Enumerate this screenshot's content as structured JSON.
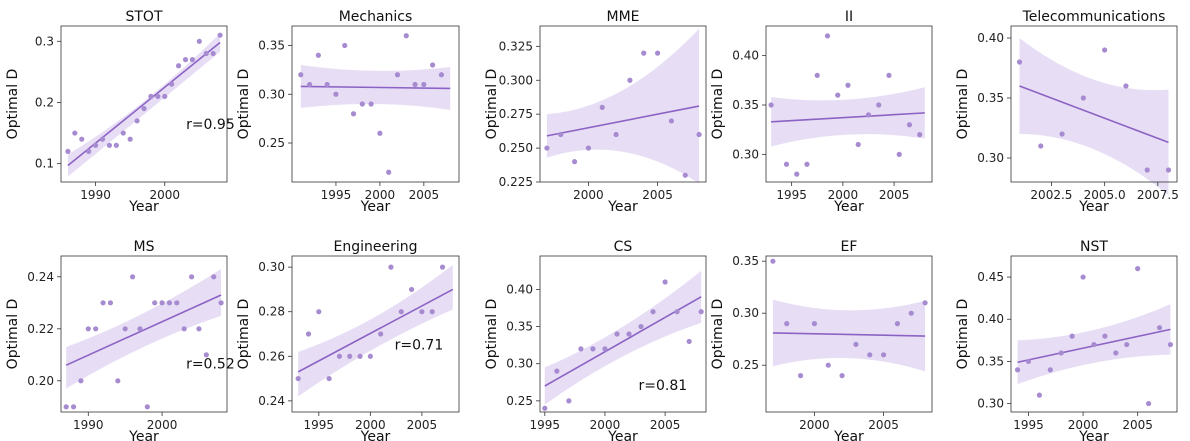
{
  "chart_data": [
    {
      "type": "scatter",
      "title": "STOT",
      "xlabel": "Year",
      "ylabel": "Optimal D",
      "xlim": [
        1985,
        2009
      ],
      "ylim": [
        0.07,
        0.325
      ],
      "xticks": [
        1990,
        2000
      ],
      "yticks": [
        0.1,
        0.2,
        0.3
      ],
      "yticklabels": [
        "0.1",
        "0.2",
        "0.3"
      ],
      "annotation": "r=0.95",
      "points": [
        [
          1986,
          0.12
        ],
        [
          1987,
          0.15
        ],
        [
          1988,
          0.14
        ],
        [
          1989,
          0.12
        ],
        [
          1990,
          0.13
        ],
        [
          1991,
          0.14
        ],
        [
          1992,
          0.13
        ],
        [
          1993,
          0.13
        ],
        [
          1994,
          0.15
        ],
        [
          1995,
          0.14
        ],
        [
          1996,
          0.17
        ],
        [
          1997,
          0.19
        ],
        [
          1998,
          0.21
        ],
        [
          1999,
          0.21
        ],
        [
          2000,
          0.21
        ],
        [
          2001,
          0.23
        ],
        [
          2002,
          0.26
        ],
        [
          2003,
          0.27
        ],
        [
          2004,
          0.27
        ],
        [
          2005,
          0.3
        ],
        [
          2006,
          0.28
        ],
        [
          2007,
          0.28
        ],
        [
          2008,
          0.31
        ]
      ],
      "fit": {
        "start": [
          1986,
          0.097
        ],
        "end": [
          2008,
          0.298
        ]
      },
      "band": {
        "upper": [
          [
            1986,
            0.115
          ],
          [
            1997,
            0.19
          ],
          [
            2008,
            0.313
          ]
        ],
        "lower": [
          [
            1986,
            0.079
          ],
          [
            1997,
            0.18
          ],
          [
            2008,
            0.283
          ]
        ]
      }
    },
    {
      "type": "scatter",
      "title": "Mechanics",
      "xlabel": "Year",
      "ylabel": "Optimal D",
      "xlim": [
        1990,
        2009
      ],
      "ylim": [
        0.21,
        0.37
      ],
      "xticks": [
        1995,
        2000,
        2005
      ],
      "yticks": [
        0.25,
        0.3,
        0.35
      ],
      "yticklabels": [
        "0.25",
        "0.30",
        "0.35"
      ],
      "annotation": "",
      "points": [
        [
          1991,
          0.32
        ],
        [
          1992,
          0.31
        ],
        [
          1993,
          0.34
        ],
        [
          1994,
          0.31
        ],
        [
          1995,
          0.3
        ],
        [
          1996,
          0.35
        ],
        [
          1997,
          0.28
        ],
        [
          1998,
          0.29
        ],
        [
          1999,
          0.29
        ],
        [
          2000,
          0.26
        ],
        [
          2001,
          0.22
        ],
        [
          2002,
          0.32
        ],
        [
          2003,
          0.36
        ],
        [
          2004,
          0.31
        ],
        [
          2005,
          0.31
        ],
        [
          2006,
          0.33
        ],
        [
          2007,
          0.32
        ]
      ],
      "fit": {
        "start": [
          1991,
          0.308
        ],
        "end": [
          2008,
          0.306
        ]
      },
      "band": {
        "upper": [
          [
            1991,
            0.33
          ],
          [
            1999.5,
            0.319
          ],
          [
            2008,
            0.328
          ]
        ],
        "lower": [
          [
            1991,
            0.286
          ],
          [
            1999.5,
            0.295
          ],
          [
            2008,
            0.284
          ]
        ]
      }
    },
    {
      "type": "scatter",
      "title": "MME",
      "xlabel": "Year",
      "ylabel": "Optimal D",
      "xlim": [
        1996.5,
        2008.5
      ],
      "ylim": [
        0.225,
        0.34
      ],
      "xticks": [
        2000,
        2005
      ],
      "yticks": [
        0.225,
        0.25,
        0.275,
        0.3,
        0.325
      ],
      "yticklabels": [
        "0.225",
        "0.250",
        "0.275",
        "0.300",
        "0.325"
      ],
      "annotation": "",
      "points": [
        [
          1997,
          0.25
        ],
        [
          1998,
          0.26
        ],
        [
          1999,
          0.24
        ],
        [
          2000,
          0.25
        ],
        [
          2001,
          0.28
        ],
        [
          2002,
          0.26
        ],
        [
          2003,
          0.3
        ],
        [
          2004,
          0.32
        ],
        [
          2005,
          0.32
        ],
        [
          2006,
          0.27
        ],
        [
          2007,
          0.23
        ],
        [
          2008,
          0.26
        ]
      ],
      "fit": {
        "start": [
          1997,
          0.259
        ],
        "end": [
          2008,
          0.281
        ]
      },
      "band": {
        "upper": [
          [
            1997,
            0.275
          ],
          [
            2002.5,
            0.279
          ],
          [
            2008,
            0.338
          ]
        ],
        "lower": [
          [
            1997,
            0.243
          ],
          [
            2002.5,
            0.261
          ],
          [
            2008,
            0.224
          ]
        ]
      }
    },
    {
      "type": "scatter",
      "title": "II",
      "xlabel": "Year",
      "ylabel": "Optimal D",
      "xlim": [
        1992.5,
        2008.7
      ],
      "ylim": [
        0.272,
        0.43
      ],
      "xticks": [
        1995,
        2000,
        2005
      ],
      "yticks": [
        0.3,
        0.35,
        0.4
      ],
      "yticklabels": [
        "0.30",
        "0.35",
        "0.40"
      ],
      "annotation": "",
      "points": [
        [
          1993,
          0.35
        ],
        [
          1994.5,
          0.29
        ],
        [
          1995.5,
          0.28
        ],
        [
          1996.5,
          0.29
        ],
        [
          1997.5,
          0.38
        ],
        [
          1998.5,
          0.42
        ],
        [
          1999.5,
          0.36
        ],
        [
          2000.5,
          0.37
        ],
        [
          2001.5,
          0.31
        ],
        [
          2002.5,
          0.34
        ],
        [
          2003.5,
          0.35
        ],
        [
          2004.5,
          0.38
        ],
        [
          2005.5,
          0.3
        ],
        [
          2006.5,
          0.33
        ],
        [
          2007.5,
          0.32
        ]
      ],
      "fit": {
        "start": [
          1993,
          0.333
        ],
        "end": [
          2008,
          0.342
        ]
      },
      "band": {
        "upper": [
          [
            1993,
            0.358
          ],
          [
            2000.5,
            0.348
          ],
          [
            2008,
            0.368
          ]
        ],
        "lower": [
          [
            1993,
            0.308
          ],
          [
            2000.5,
            0.328
          ],
          [
            2008,
            0.316
          ]
        ]
      }
    },
    {
      "type": "scatter",
      "title": "Telecommunications",
      "xlabel": "Year",
      "ylabel": "Optimal D",
      "xlim": [
        2000.6,
        2008.4
      ],
      "ylim": [
        0.28,
        0.41
      ],
      "xticks": [
        2002.5,
        2005,
        2007.5
      ],
      "xticklabels": [
        "2002.5",
        "2005.0",
        "2007.5"
      ],
      "yticks": [
        0.3,
        0.35,
        0.4
      ],
      "yticklabels": [
        "0.30",
        "0.35",
        "0.40"
      ],
      "annotation": "",
      "points": [
        [
          2001,
          0.38
        ],
        [
          2002,
          0.31
        ],
        [
          2003,
          0.32
        ],
        [
          2004,
          0.35
        ],
        [
          2005,
          0.39
        ],
        [
          2006,
          0.36
        ],
        [
          2007,
          0.29
        ],
        [
          2008,
          0.29
        ]
      ],
      "fit": {
        "start": [
          2001,
          0.36
        ],
        "end": [
          2008,
          0.313
        ]
      },
      "band": {
        "upper": [
          [
            2001,
            0.4
          ],
          [
            2004.5,
            0.352
          ],
          [
            2008,
            0.357
          ]
        ],
        "lower": [
          [
            2001,
            0.32
          ],
          [
            2004.5,
            0.32
          ],
          [
            2008,
            0.269
          ]
        ]
      }
    },
    {
      "type": "scatter",
      "title": "MS",
      "xlabel": "Year",
      "ylabel": "Optimal D",
      "xlim": [
        1986.3,
        2008.8
      ],
      "ylim": [
        0.188,
        0.248
      ],
      "xticks": [
        1990,
        2000
      ],
      "yticks": [
        0.2,
        0.22,
        0.24
      ],
      "yticklabels": [
        "0.20",
        "0.22",
        "0.24"
      ],
      "annotation": "r=0.52",
      "points": [
        [
          1987,
          0.19
        ],
        [
          1988,
          0.19
        ],
        [
          1989,
          0.2
        ],
        [
          1990,
          0.22
        ],
        [
          1991,
          0.22
        ],
        [
          1992,
          0.23
        ],
        [
          1993,
          0.23
        ],
        [
          1994,
          0.2
        ],
        [
          1995,
          0.22
        ],
        [
          1996,
          0.24
        ],
        [
          1997,
          0.22
        ],
        [
          1998,
          0.19
        ],
        [
          1999,
          0.23
        ],
        [
          2000,
          0.23
        ],
        [
          2001,
          0.23
        ],
        [
          2002,
          0.23
        ],
        [
          2003,
          0.22
        ],
        [
          2004,
          0.24
        ],
        [
          2005,
          0.22
        ],
        [
          2006,
          0.21
        ],
        [
          2007,
          0.24
        ],
        [
          2008,
          0.23
        ]
      ],
      "fit": {
        "start": [
          1987,
          0.206
        ],
        "end": [
          2008,
          0.233
        ]
      },
      "band": {
        "upper": [
          [
            1987,
            0.213
          ],
          [
            1997.5,
            0.224
          ],
          [
            2008,
            0.243
          ]
        ],
        "lower": [
          [
            1987,
            0.197
          ],
          [
            1997.5,
            0.215
          ],
          [
            2008,
            0.225
          ]
        ]
      }
    },
    {
      "type": "scatter",
      "title": "Engineering",
      "xlabel": "Year",
      "ylabel": "Optimal D",
      "xlim": [
        1992.4,
        2008.6
      ],
      "ylim": [
        0.235,
        0.305
      ],
      "xticks": [
        1995,
        2000,
        2005
      ],
      "yticks": [
        0.24,
        0.26,
        0.28,
        0.3
      ],
      "yticklabels": [
        "0.24",
        "0.26",
        "0.28",
        "0.30"
      ],
      "annotation": "r=0.71",
      "points": [
        [
          1993,
          0.25
        ],
        [
          1994,
          0.27
        ],
        [
          1995,
          0.28
        ],
        [
          1996,
          0.25
        ],
        [
          1997,
          0.26
        ],
        [
          1998,
          0.26
        ],
        [
          1999,
          0.26
        ],
        [
          2000,
          0.26
        ],
        [
          2001,
          0.27
        ],
        [
          2002,
          0.3
        ],
        [
          2003,
          0.28
        ],
        [
          2004,
          0.29
        ],
        [
          2005,
          0.28
        ],
        [
          2006,
          0.28
        ],
        [
          2007,
          0.3
        ]
      ],
      "fit": {
        "start": [
          1993,
          0.253
        ],
        "end": [
          2008,
          0.29
        ]
      },
      "band": {
        "upper": [
          [
            1993,
            0.262
          ],
          [
            2000.5,
            0.274
          ],
          [
            2008,
            0.301
          ]
        ],
        "lower": [
          [
            1993,
            0.242
          ],
          [
            2000.5,
            0.266
          ],
          [
            2008,
            0.281
          ]
        ]
      }
    },
    {
      "type": "scatter",
      "title": "CS",
      "xlabel": "Year",
      "ylabel": "Optimal D",
      "xlim": [
        1994.6,
        2008.4
      ],
      "ylim": [
        0.235,
        0.445
      ],
      "xticks": [
        1995,
        2000,
        2005
      ],
      "yticks": [
        0.25,
        0.3,
        0.35,
        0.4
      ],
      "yticklabels": [
        "0.25",
        "0.30",
        "0.35",
        "0.40"
      ],
      "annotation": "r=0.81",
      "points": [
        [
          1995,
          0.24
        ],
        [
          1996,
          0.29
        ],
        [
          1997,
          0.25
        ],
        [
          1998,
          0.32
        ],
        [
          1999,
          0.32
        ],
        [
          2000,
          0.32
        ],
        [
          2001,
          0.34
        ],
        [
          2002,
          0.34
        ],
        [
          2003,
          0.35
        ],
        [
          2004,
          0.37
        ],
        [
          2005,
          0.41
        ],
        [
          2006,
          0.37
        ],
        [
          2007,
          0.33
        ],
        [
          2008,
          0.37
        ]
      ],
      "fit": {
        "start": [
          1995,
          0.27
        ],
        "end": [
          2008,
          0.39
        ]
      },
      "band": {
        "upper": [
          [
            1995,
            0.295
          ],
          [
            2001.5,
            0.34
          ],
          [
            2008,
            0.425
          ]
        ],
        "lower": [
          [
            1995,
            0.245
          ],
          [
            2001.5,
            0.32
          ],
          [
            2008,
            0.355
          ]
        ]
      }
    },
    {
      "type": "scatter",
      "title": "EF",
      "xlabel": "Year",
      "ylabel": "Optimal D",
      "xlim": [
        1996.5,
        2008.5
      ],
      "ylim": [
        0.205,
        0.355
      ],
      "xticks": [
        2000,
        2005
      ],
      "yticks": [
        0.25,
        0.3,
        0.35
      ],
      "yticklabels": [
        "0.25",
        "0.30",
        "0.35"
      ],
      "annotation": "",
      "points": [
        [
          1997,
          0.35
        ],
        [
          1998,
          0.29
        ],
        [
          1999,
          0.24
        ],
        [
          2000,
          0.29
        ],
        [
          2001,
          0.25
        ],
        [
          2002,
          0.24
        ],
        [
          2003,
          0.27
        ],
        [
          2004,
          0.26
        ],
        [
          2005,
          0.26
        ],
        [
          2006,
          0.29
        ],
        [
          2007,
          0.3
        ],
        [
          2008,
          0.31
        ]
      ],
      "fit": {
        "start": [
          1997,
          0.281
        ],
        "end": [
          2008,
          0.278
        ]
      },
      "band": {
        "upper": [
          [
            1997,
            0.313
          ],
          [
            2002.5,
            0.293
          ],
          [
            2008,
            0.312
          ]
        ],
        "lower": [
          [
            1997,
            0.249
          ],
          [
            2002.5,
            0.267
          ],
          [
            2008,
            0.244
          ]
        ]
      }
    },
    {
      "type": "scatter",
      "title": "NST",
      "xlabel": "Year",
      "ylabel": "Optimal D",
      "xlim": [
        1993.4,
        2008.6
      ],
      "ylim": [
        0.29,
        0.475
      ],
      "xticks": [
        1995,
        2000,
        2005
      ],
      "yticks": [
        0.3,
        0.35,
        0.4,
        0.45
      ],
      "yticklabels": [
        "0.30",
        "0.35",
        "0.40",
        "0.45"
      ],
      "annotation": "",
      "points": [
        [
          1994,
          0.34
        ],
        [
          1995,
          0.35
        ],
        [
          1996,
          0.31
        ],
        [
          1997,
          0.34
        ],
        [
          1998,
          0.36
        ],
        [
          1999,
          0.38
        ],
        [
          2000,
          0.45
        ],
        [
          2001,
          0.37
        ],
        [
          2002,
          0.38
        ],
        [
          2003,
          0.36
        ],
        [
          2004,
          0.37
        ],
        [
          2005,
          0.46
        ],
        [
          2006,
          0.3
        ],
        [
          2007,
          0.39
        ],
        [
          2008,
          0.37
        ]
      ],
      "fit": {
        "start": [
          1994,
          0.349
        ],
        "end": [
          2008,
          0.388
        ]
      },
      "band": {
        "upper": [
          [
            1994,
            0.375
          ],
          [
            2001,
            0.378
          ],
          [
            2008,
            0.418
          ]
        ],
        "lower": [
          [
            1994,
            0.323
          ],
          [
            2001,
            0.356
          ],
          [
            2008,
            0.358
          ]
        ]
      }
    }
  ]
}
